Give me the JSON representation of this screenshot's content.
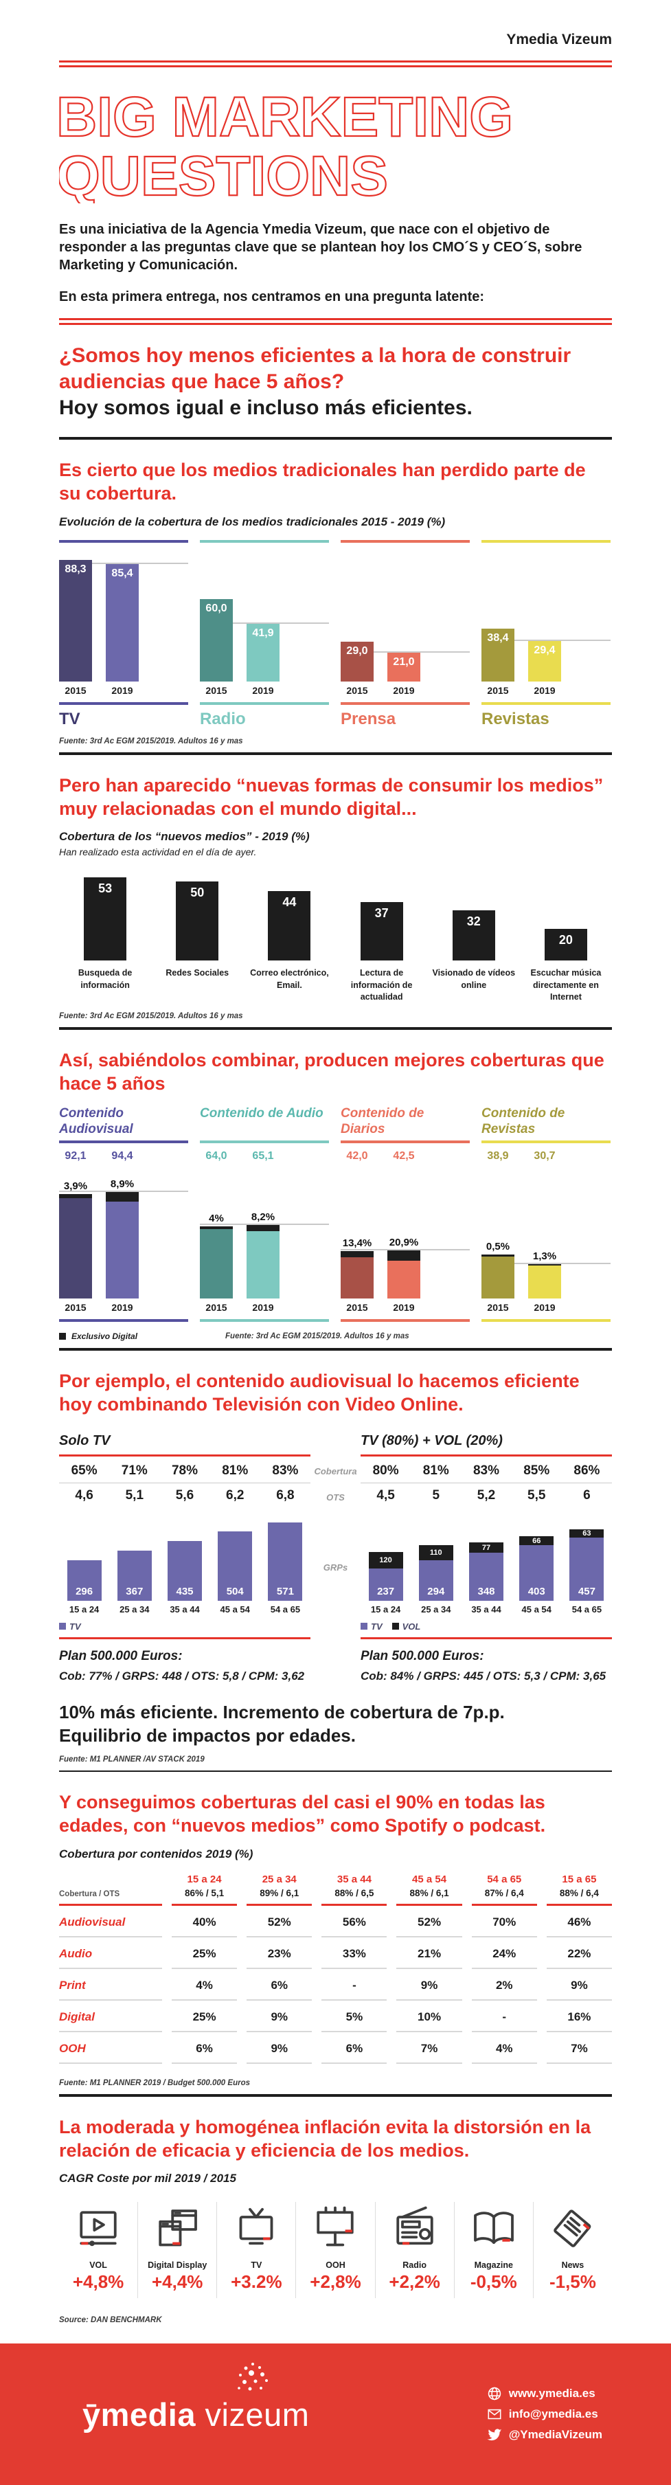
{
  "header": {
    "brand": "Ymedia Vizeum"
  },
  "title": {
    "line1": "BIG MARKETING",
    "line2": "QUESTIONS"
  },
  "intro": {
    "p1": "Es una iniciativa de la Agencia Ymedia Vizeum, que nace con el objetivo de responder a las preguntas clave que se plantean hoy los CMO´S y CEO´S, sobre Marketing y Comunicación.",
    "p2": "En esta primera entrega, nos centramos en una pregunta latente:"
  },
  "question": {
    "red": "¿Somos hoy menos eficientes a la hora de construir audiencias que hace 5 años?",
    "black": "Hoy somos igual e incluso más eficientes."
  },
  "colors": {
    "accent_red": "#E6332A",
    "footer_red": "#E23B31",
    "black_bar": "#1D1D1D",
    "grp_blue": "#6C68AB",
    "gray_line": "#C9C9C9"
  },
  "sections": {
    "s1": {
      "heading": "Es cierto que los medios tradicionales han perdido parte de su cobertura.",
      "source": "Fuente: 3rd Ac EGM 2015/2019. Adultos 16 y mas"
    },
    "s2": {
      "heading": "Pero han aparecido “nuevas formas de consumir los medios” muy relacionadas con el mundo digital...",
      "source": "Fuente: 3rd Ac EGM 2015/2019. Adultos 16 y mas"
    },
    "s3": {
      "heading": "Así, sabiéndolos combinar, producen mejores coberturas que hace 5 años",
      "source": "Fuente: 3rd Ac EGM 2015/2019. Adultos 16 y mas"
    },
    "s4": {
      "heading": "Por ejemplo, el contenido audiovisual lo hacemos eficiente hoy  combinando Televisión con Video Online.",
      "row_labels": [
        "Cobertura",
        "OTS",
        "GRPs"
      ],
      "note1": "10% más eficiente. Incremento de cobertura de 7p.p.",
      "note2": "Equilibrio de impactos por edades.",
      "source": "Fuente: M1 PLANNER /AV STACK  2019"
    },
    "s5": {
      "heading": "Y conseguimos coberturas del casi el 90% en todas las edades, con “nuevos medios” como Spotify o podcast.",
      "source": "Fuente: M1 PLANNER 2019 / Budget 500.000 Euros"
    },
    "s6": {
      "heading": "La moderada y homogénea inflación evita la distorsión en la relación de eficacia y eficiencia de los medios.",
      "source": "Source: DAN BENCHMARK"
    }
  },
  "chart_data": [
    {
      "id": "traditional",
      "type": "bar",
      "title": "Evolución de la cobertura de los medios tradicionales 2015 - 2019 (%)",
      "series": [
        "2015",
        "2019"
      ],
      "ylim": [
        0,
        100
      ],
      "groups": [
        {
          "name": "TV",
          "values": [
            88.3,
            85.4
          ],
          "value_labels": [
            "88,3",
            "85,4"
          ],
          "colors": [
            "#4A4571",
            "#6C68AB"
          ],
          "accent": "#55519E",
          "name_color": "#3F3A6E"
        },
        {
          "name": "Radio",
          "values": [
            60.0,
            41.9
          ],
          "value_labels": [
            "60,0",
            "41,9"
          ],
          "colors": [
            "#4E8F88",
            "#7EC9C0"
          ],
          "accent": "#7EC9C0",
          "name_color": "#7EC9C0"
        },
        {
          "name": "Prensa",
          "values": [
            29.0,
            21.0
          ],
          "value_labels": [
            "29,0",
            "21,0"
          ],
          "colors": [
            "#A85147",
            "#E9705C"
          ],
          "accent": "#E9705C",
          "name_color": "#E9705C"
        },
        {
          "name": "Revistas",
          "values": [
            38.4,
            29.4
          ],
          "value_labels": [
            "38,4",
            "29,4"
          ],
          "colors": [
            "#A49A3C",
            "#E9DC4F"
          ],
          "accent": "#E9DC4F",
          "name_color": "#A49A3C"
        }
      ]
    },
    {
      "id": "new_media",
      "type": "bar",
      "title": "Cobertura de los “nuevos medios” - 2019 (%)",
      "subtitle": "Han realizado esta actividad en el día de ayer.",
      "categories": [
        "Busqueda de información",
        "Redes Sociales",
        "Correo electrónico, Email.",
        "Lectura de información de actualidad",
        "Visionado de vídeos online",
        "Escuchar música directamente en Internet"
      ],
      "values": [
        53,
        50,
        44,
        37,
        32,
        20
      ],
      "ylim": [
        0,
        60
      ]
    },
    {
      "id": "combined",
      "type": "stacked-bar",
      "x_labels": [
        "2015",
        "2019"
      ],
      "legend": "Exclusivo Digital",
      "groups": [
        {
          "title": "Contenido Audiovisual",
          "totals": [
            92.1,
            94.4
          ],
          "total_labels": [
            "92,1",
            "94,4"
          ],
          "pct_values": [
            3.9,
            8.9
          ],
          "pct_labels": [
            "3,9%",
            "8,9%"
          ],
          "colors": [
            "#4A4571",
            "#6C68AB"
          ],
          "accent": "#55519E",
          "title_color": "#55519E"
        },
        {
          "title": "Contenido de Audio",
          "totals": [
            64.0,
            65.1
          ],
          "total_labels": [
            "64,0",
            "65,1"
          ],
          "pct_values": [
            4.0,
            8.2
          ],
          "pct_labels": [
            "4%",
            "8,2%"
          ],
          "colors": [
            "#4E8F88",
            "#7EC9C0"
          ],
          "accent": "#7EC9C0",
          "title_color": "#5BB8AE"
        },
        {
          "title": "Contenido de Diarios",
          "totals": [
            42.0,
            42.5
          ],
          "total_labels": [
            "42,0",
            "42,5"
          ],
          "pct_values": [
            13.4,
            20.9
          ],
          "pct_labels": [
            "13,4%",
            "20,9%"
          ],
          "colors": [
            "#A85147",
            "#E9705C"
          ],
          "accent": "#E9705C",
          "title_color": "#E9705C"
        },
        {
          "title": "Contenido de Revistas",
          "totals": [
            38.9,
            30.7
          ],
          "total_labels": [
            "38,9",
            "30,7"
          ],
          "pct_values": [
            0.5,
            1.3
          ],
          "pct_labels": [
            "0,5%",
            "1,3%"
          ],
          "colors": [
            "#A49A3C",
            "#E9DC4F"
          ],
          "accent": "#E9DC4F",
          "title_color": "#A49A3C"
        }
      ]
    },
    {
      "id": "solo_tv",
      "type": "bar",
      "title": "Solo TV",
      "categories": [
        "15 a 24",
        "25 a 34",
        "35 a 44",
        "45 a 54",
        "54 a 65"
      ],
      "cobertura": [
        "65%",
        "71%",
        "78%",
        "81%",
        "83%"
      ],
      "ots": [
        "4,6",
        "5,1",
        "5,6",
        "6,2",
        "6,8"
      ],
      "grps": [
        296,
        367,
        435,
        504,
        571
      ],
      "legend": [
        "TV"
      ],
      "plan_title": "Plan 500.000 Euros:",
      "plan_detail": "Cob: 77% / GRPS: 448 / OTS: 5,8  / CPM: 3,62"
    },
    {
      "id": "tv_vol",
      "type": "stacked-bar",
      "title": "TV (80%) + VOL (20%)",
      "categories": [
        "15 a 24",
        "25 a 34",
        "35 a 44",
        "45 a 54",
        "54 a 65"
      ],
      "cobertura": [
        "80%",
        "81%",
        "83%",
        "85%",
        "86%"
      ],
      "ots": [
        "4,5",
        "5",
        "5,2",
        "5,5",
        "6"
      ],
      "tv_grps": [
        237,
        294,
        348,
        403,
        457
      ],
      "vol_grps": [
        120,
        110,
        77,
        66,
        63
      ],
      "legend": [
        "TV",
        "VOL"
      ],
      "plan_title": "Plan 500.000 Euros:",
      "plan_detail": "Cob: 84% / GRPS: 445 / OTS: 5,3  / CPM: 3,65"
    },
    {
      "id": "coverage_table",
      "type": "table",
      "title": "Cobertura por contenidos 2019 (%)",
      "col_header_label": "Cobertura / OTS",
      "columns": [
        "15 a 24",
        "25 a 34",
        "35 a 44",
        "45 a 54",
        "54 a 65",
        "15 a 65"
      ],
      "col_subheaders": [
        "86% / 5,1",
        "89% / 6,1",
        "88% / 6,5",
        "88% / 6,1",
        "87% / 6,4",
        "88% / 6,4"
      ],
      "rows": [
        {
          "label": "Audiovisual",
          "values": [
            "40%",
            "52%",
            "56%",
            "52%",
            "70%",
            "46%"
          ]
        },
        {
          "label": "Audio",
          "values": [
            "25%",
            "23%",
            "33%",
            "21%",
            "24%",
            "22%"
          ]
        },
        {
          "label": "Print",
          "values": [
            "4%",
            "6%",
            "-",
            "9%",
            "2%",
            "9%"
          ]
        },
        {
          "label": "Digital",
          "values": [
            "25%",
            "9%",
            "5%",
            "10%",
            "-",
            "16%"
          ]
        },
        {
          "label": "OOH",
          "values": [
            "6%",
            "9%",
            "6%",
            "7%",
            "4%",
            "7%"
          ]
        }
      ]
    },
    {
      "id": "cagr",
      "type": "table",
      "title": "CAGR Coste por mil 2019 / 2015",
      "items": [
        {
          "label": "VOL",
          "value": "+4,8%",
          "icon": "video-player-icon"
        },
        {
          "label": "Digital Display",
          "value": "+4,4%",
          "icon": "browser-windows-icon"
        },
        {
          "label": "TV",
          "value": "+3.2%",
          "icon": "tv-icon"
        },
        {
          "label": "OOH",
          "value": "+2,8%",
          "icon": "billboard-icon"
        },
        {
          "label": "Radio",
          "value": "+2,2%",
          "icon": "radio-icon"
        },
        {
          "label": "Magazine",
          "value": "-0,5%",
          "icon": "magazine-icon"
        },
        {
          "label": "News",
          "value": "-1,5%",
          "icon": "newspaper-icon"
        }
      ]
    }
  ],
  "footer": {
    "logo_bold": "ȳmedia",
    "logo_light": "vizeum",
    "links": [
      {
        "icon": "globe-icon",
        "text": "www.ymedia.es"
      },
      {
        "icon": "envelope-icon",
        "text": "info@ymedia.es"
      },
      {
        "icon": "twitter-icon",
        "text": "@YmediaVizeum"
      }
    ]
  }
}
